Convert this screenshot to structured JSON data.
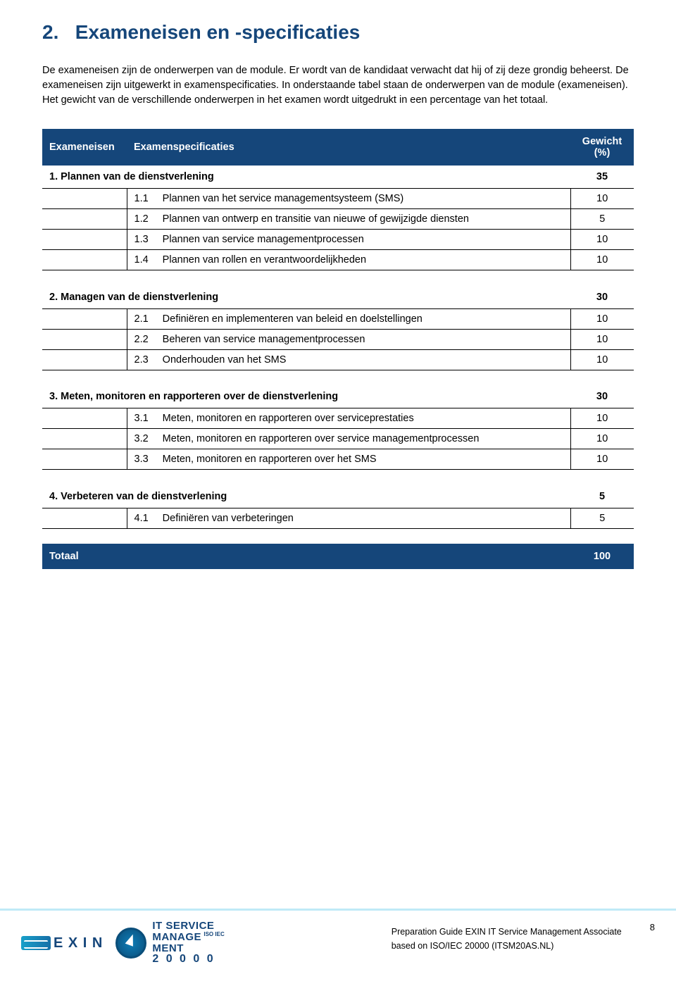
{
  "section": {
    "number": "2.",
    "title": "Exameneisen en -specificaties"
  },
  "intro": "De exameneisen zijn de onderwerpen van de module. Er wordt van de kandidaat verwacht dat hij of zij deze grondig beheerst. De exameneisen zijn uitgewerkt in examenspecificaties. In onderstaande tabel staan de onderwerpen van de module (exameneisen). Het gewicht van de verschillende onderwerpen in het examen wordt uitgedrukt in een percentage van het totaal.",
  "table": {
    "header": {
      "col1": "Exameneisen",
      "col2": "Examenspecificaties",
      "weight": "Gewicht (%)"
    },
    "categories": [
      {
        "label": "1. Plannen van de dienstverlening",
        "weight": "35",
        "rows": [
          {
            "num": "1.1",
            "label": "Plannen van het service managementsysteem (SMS)",
            "weight": "10"
          },
          {
            "num": "1.2",
            "label": "Plannen van ontwerp en transitie van nieuwe of gewijzigde diensten",
            "weight": "5"
          },
          {
            "num": "1.3",
            "label": "Plannen van service managementprocessen",
            "weight": "10"
          },
          {
            "num": "1.4",
            "label": "Plannen van rollen en verantwoordelijkheden",
            "weight": "10"
          }
        ]
      },
      {
        "label": "2. Managen van de dienstverlening",
        "weight": "30",
        "rows": [
          {
            "num": "2.1",
            "label": "Definiëren en implementeren van beleid en doelstellingen",
            "weight": "10"
          },
          {
            "num": "2.2",
            "label": "Beheren van service managementprocessen",
            "weight": "10"
          },
          {
            "num": "2.3",
            "label": "Onderhouden van het SMS",
            "weight": "10"
          }
        ]
      },
      {
        "label": "3. Meten, monitoren en rapporteren over de dienstverlening",
        "weight": "30",
        "rows": [
          {
            "num": "3.1",
            "label": "Meten, monitoren en rapporteren over serviceprestaties",
            "weight": "10"
          },
          {
            "num": "3.2",
            "label": "Meten, monitoren en rapporteren over service managementprocessen",
            "weight": "10"
          },
          {
            "num": "3.3",
            "label": "Meten, monitoren en rapporteren over het SMS",
            "weight": "10"
          }
        ]
      },
      {
        "label": "4. Verbeteren van de dienstverlening",
        "weight": "5",
        "rows": [
          {
            "num": "4.1",
            "label": "Definiëren van verbeteringen",
            "weight": "5"
          }
        ]
      }
    ],
    "total": {
      "label": "Totaal",
      "weight": "100"
    }
  },
  "footer": {
    "exin": "E X I N",
    "badge_line1": "IT SERVICE",
    "badge_line2": "MANAGE",
    "badge_line2_sup": "ISO IEC",
    "badge_line3": "MENT",
    "badge_line4": "2 0 0 0 0",
    "doc_line1": "Preparation Guide EXIN IT Service Management Associate",
    "doc_line2": "based on ISO/IEC 20000 (ITSM20AS.NL)",
    "page": "8"
  },
  "colors": {
    "brand": "#15467a",
    "accent_border": "#bfeaf7",
    "text": "#000000",
    "bg": "#ffffff"
  }
}
